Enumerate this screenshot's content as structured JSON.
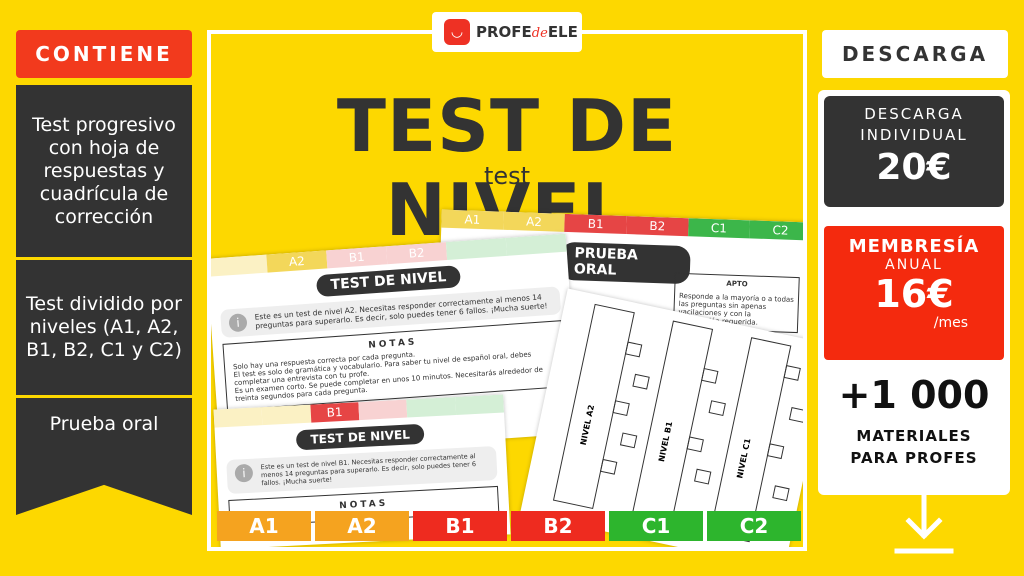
{
  "left": {
    "header": "CONTIENE",
    "items": [
      "Test progresivo con hoja de respuestas y cuadrícula de corrección",
      "Test dividido por niveles (A1, A2, B1, B2, C1 y C2)",
      "Prueba oral"
    ]
  },
  "logo": {
    "text_a": "PROFE",
    "text_b": "de",
    "text_c": "ELE"
  },
  "center": {
    "title": "TEST DE NIVEL",
    "subtitle": "test",
    "levels": [
      "A1",
      "A2",
      "B1",
      "B2",
      "C1",
      "C2"
    ],
    "level_colors": [
      "#F5A31F",
      "#F5A31F",
      "#EE2B1F",
      "#EE2B1F",
      "#2DB52D",
      "#2DB52D"
    ],
    "sheet_a2": {
      "title": "TEST DE NIVEL",
      "info": "Este es un test de nivel A2. Necesitas responder correctamente al menos 14 preguntas para superarlo. Es decir, solo puedes tener 6 fallos. ¡Mucha suerte!",
      "notes_title": "NOTAS",
      "notes": [
        "Solo hay una respuesta correcta por cada pregunta.",
        "El test es solo de gramática y vocabulario. Para saber tu nivel de español oral, debes completar una entrevista con tu profe.",
        "Es un examen corto. Se puede completar en unos 10 minutos. Necesitarás alrededor de treinta segundos para cada pregunta."
      ]
    },
    "sheet_b1": {
      "title": "TEST DE NIVEL",
      "info": "Este es un test de nivel B1. Necesitas responder correctamente al menos 14 preguntas para superarlo. Es decir, solo puedes tener 6 fallos. ¡Mucha suerte!",
      "notes_title": "NOTAS"
    },
    "sheet_oral": {
      "title": "PRUEBA ORAL",
      "col": "APTO",
      "text": "Responde a la mayoría o a todas las preguntas sin apenas vacilaciones y con la información requerida."
    },
    "grid_labels": [
      "NIVEL A2",
      "NIVEL B1",
      "NIVEL C1"
    ]
  },
  "right": {
    "header": "DESCARGA",
    "individual_label": "DESCARGA INDIVIDUAL",
    "individual_price": "20€",
    "membership_label": "MEMBRESÍA",
    "membership_period": "ANUAL",
    "membership_price": "16€",
    "membership_unit": "/mes",
    "materials_count": "+1 000",
    "materials_label": "MATERIALES PARA PROFES"
  },
  "icons": {
    "download": "download-arrow-icon",
    "info": "info-icon",
    "logo": "smiley-logo-icon"
  }
}
